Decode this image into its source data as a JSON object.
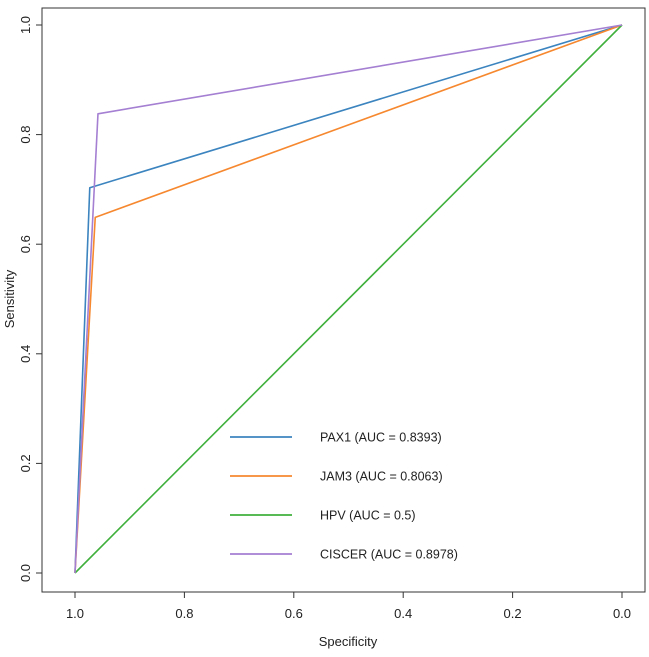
{
  "chart_data": {
    "type": "line",
    "title": "",
    "xlabel": "Specificity",
    "ylabel": "Sensitivity",
    "xlim": [
      1.0,
      0.0
    ],
    "ylim": [
      0.0,
      1.0
    ],
    "x_reversed": true,
    "xticks": [
      "1.0",
      "0.8",
      "0.6",
      "0.4",
      "0.2",
      "0.0"
    ],
    "yticks": [
      "0.0",
      "0.2",
      "0.4",
      "0.6",
      "0.8",
      "1.0"
    ],
    "grid": false,
    "legend_position": "bottom-center",
    "series": [
      {
        "name": "PAX1 (AUC = 0.8393)",
        "color": "#3b84bf",
        "x": [
          1.0,
          0.973,
          0.0
        ],
        "y": [
          0.0,
          0.703,
          1.0
        ]
      },
      {
        "name": "JAM3 (AUC = 0.8063)",
        "color": "#f6882f",
        "x": [
          1.0,
          0.963,
          0.0
        ],
        "y": [
          0.0,
          0.649,
          1.0
        ]
      },
      {
        "name": "HPV (AUC = 0.5)",
        "color": "#3fb03c",
        "x": [
          1.0,
          0.0
        ],
        "y": [
          0.0,
          1.0
        ]
      },
      {
        "name": "CISCER (AUC = 0.8978)",
        "color": "#a47fd2",
        "x": [
          1.0,
          0.958,
          0.0
        ],
        "y": [
          0.0,
          0.838,
          1.0
        ]
      }
    ]
  }
}
